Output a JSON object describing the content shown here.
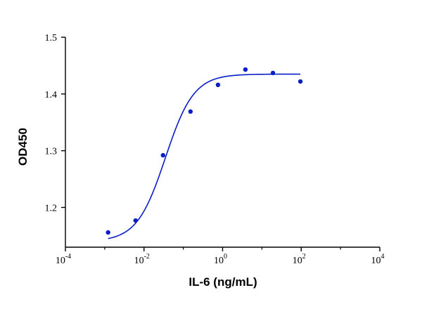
{
  "chart_data": {
    "type": "scatter",
    "xlabel": "IL-6 (ng/mL)",
    "ylabel": "OD450",
    "x_scale": "log10",
    "xlim": [
      0.0001,
      10000
    ],
    "ylim": [
      1.13,
      1.5
    ],
    "x_ticks": [
      {
        "value": 0.0001,
        "base": "10",
        "exp": "-4"
      },
      {
        "value": 0.01,
        "base": "10",
        "exp": "-2"
      },
      {
        "value": 1,
        "base": "10",
        "exp": "0"
      },
      {
        "value": 100,
        "base": "10",
        "exp": "2"
      },
      {
        "value": 10000,
        "base": "10",
        "exp": "4"
      }
    ],
    "y_ticks": [
      "1.2",
      "1.3",
      "1.4",
      "1.5"
    ],
    "grid": false,
    "legend": "none",
    "series": [
      {
        "points": [
          {
            "x": 0.00122,
            "y": 1.156
          },
          {
            "x": 0.0061,
            "y": 1.177
          },
          {
            "x": 0.0305,
            "y": 1.292
          },
          {
            "x": 0.1525,
            "y": 1.369
          },
          {
            "x": 0.763,
            "y": 1.416
          },
          {
            "x": 3.81,
            "y": 1.443
          },
          {
            "x": 19.1,
            "y": 1.437
          },
          {
            "x": 95.4,
            "y": 1.422
          }
        ],
        "color": "#0a1ec8",
        "fit_curve": {
          "model": "4PL",
          "bottom": 1.14,
          "top": 1.435,
          "ec50": 0.035,
          "hill": 1.2,
          "x_range": [
            0.00122,
            95.4
          ]
        }
      }
    ]
  }
}
